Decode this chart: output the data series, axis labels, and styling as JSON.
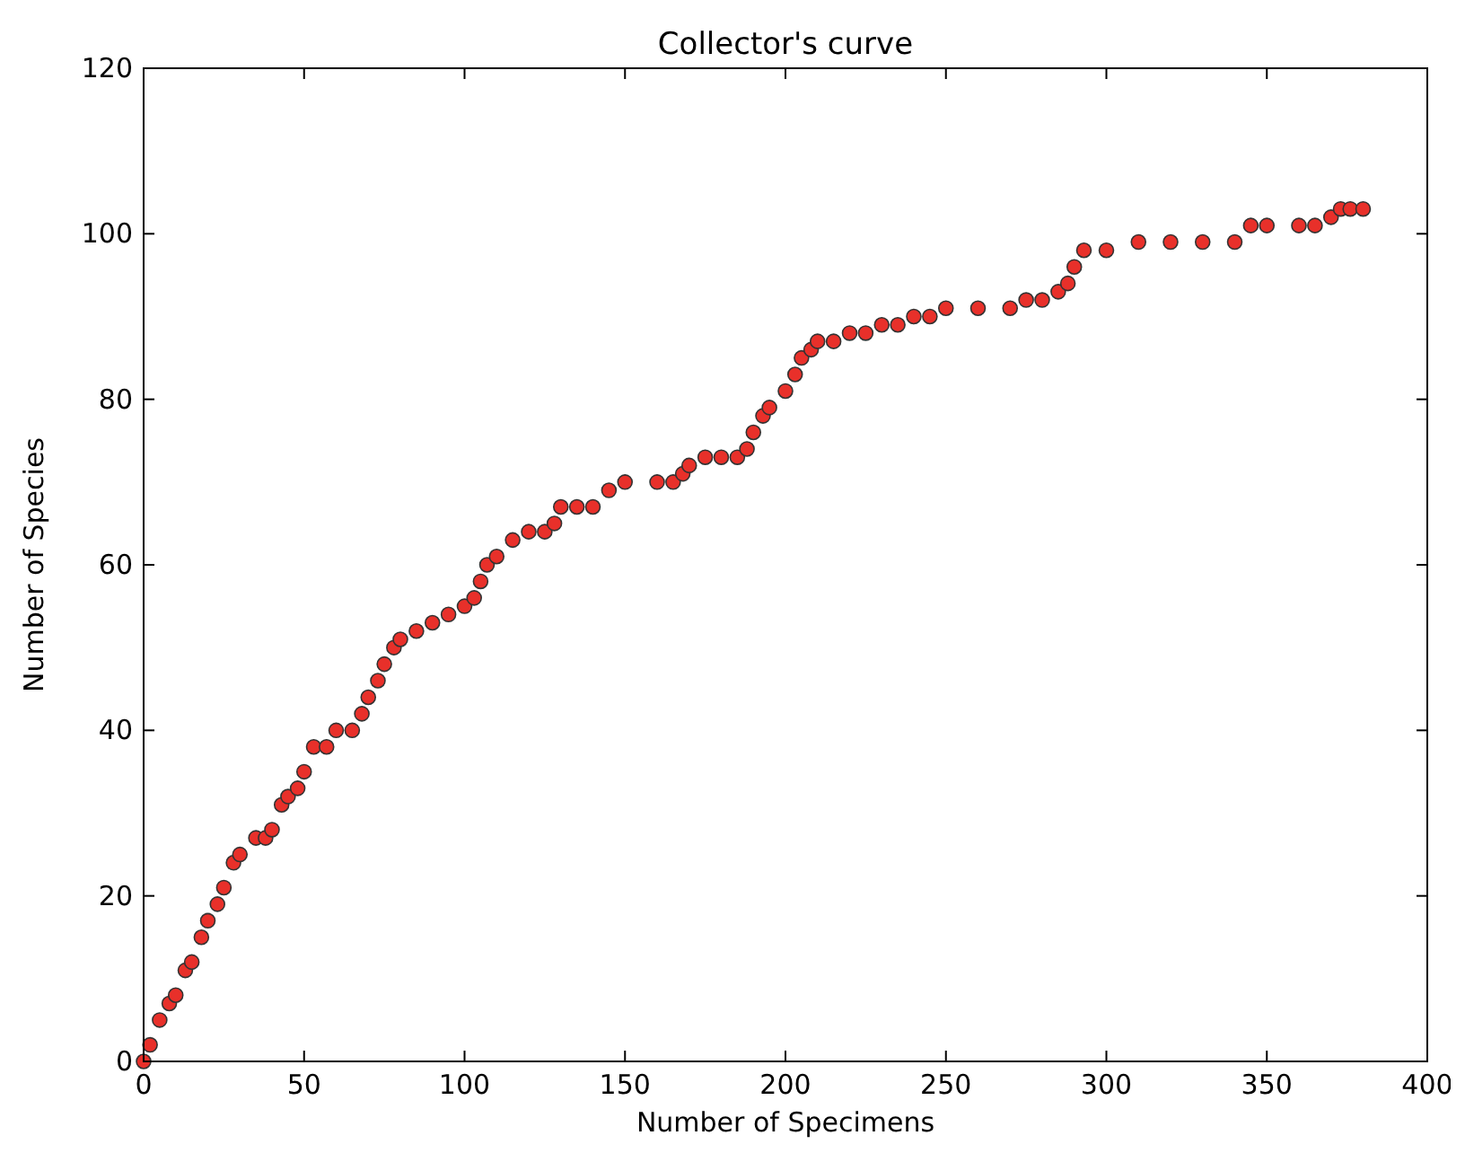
{
  "chart_data": {
    "type": "scatter",
    "title": "Collector's curve",
    "xlabel": "Number of Specimens",
    "ylabel": "Number of Species",
    "xlim": [
      0,
      400
    ],
    "ylim": [
      0,
      120
    ],
    "xticks": [
      0,
      50,
      100,
      150,
      200,
      250,
      300,
      350,
      400
    ],
    "yticks": [
      0,
      20,
      40,
      60,
      80,
      100,
      120
    ],
    "grid": false,
    "marker": "circle",
    "series": [
      {
        "color": "#e8302a",
        "x": [
          0,
          2,
          5,
          8,
          10,
          13,
          15,
          18,
          20,
          23,
          25,
          28,
          30,
          35,
          38,
          40,
          43,
          45,
          48,
          50,
          53,
          57,
          60,
          65,
          68,
          70,
          73,
          75,
          78,
          80,
          85,
          90,
          95,
          100,
          103,
          105,
          107,
          110,
          115,
          120,
          125,
          128,
          130,
          135,
          140,
          145,
          150,
          160,
          165,
          168,
          170,
          175,
          180,
          185,
          188,
          190,
          193,
          195,
          200,
          203,
          205,
          208,
          210,
          215,
          220,
          225,
          230,
          235,
          240,
          245,
          250,
          260,
          270,
          275,
          280,
          285,
          288,
          290,
          293,
          300,
          310,
          320,
          330,
          340,
          345,
          350,
          360,
          365,
          370,
          373,
          376,
          380
        ],
        "values": [
          0,
          2,
          5,
          7,
          8,
          11,
          12,
          15,
          17,
          19,
          21,
          24,
          25,
          27,
          27,
          28,
          31,
          32,
          33,
          35,
          38,
          38,
          40,
          40,
          42,
          44,
          46,
          48,
          50,
          51,
          52,
          53,
          54,
          55,
          56,
          58,
          60,
          61,
          63,
          64,
          64,
          65,
          67,
          67,
          67,
          69,
          70,
          70,
          70,
          71,
          72,
          73,
          73,
          73,
          74,
          76,
          78,
          79,
          81,
          83,
          85,
          86,
          87,
          87,
          88,
          88,
          89,
          89,
          90,
          90,
          91,
          91,
          91,
          92,
          92,
          93,
          94,
          96,
          98,
          98,
          99,
          99,
          99,
          99,
          101,
          101,
          101,
          101,
          102,
          103,
          103,
          103
        ]
      }
    ]
  }
}
